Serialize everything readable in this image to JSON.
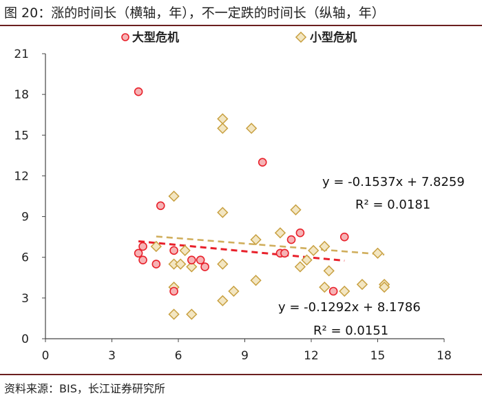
{
  "header": {
    "title": "图 20：涨的时间长（横轴，年），不一定跌的时间长（纵轴，年）"
  },
  "footer": {
    "source": "资料来源：BIS，长江证券研究所"
  },
  "colors": {
    "major": "#e8202a",
    "major_fill": "#f6b3b5",
    "minor": "#c8a040",
    "minor_fill": "#f3e6c2",
    "rule": "#6b1f1f",
    "axis": "#444444"
  },
  "chart_data": {
    "type": "scatter",
    "title": "涨的时间长（横轴，年），不一定跌的时间长（纵轴，年）",
    "xlabel": "",
    "ylabel": "",
    "xlim": [
      0,
      18
    ],
    "ylim": [
      0,
      21
    ],
    "xticks": [
      0,
      3,
      6,
      9,
      12,
      15,
      18
    ],
    "yticks": [
      0,
      3,
      6,
      9,
      12,
      15,
      18,
      21
    ],
    "grid": false,
    "legend_position": "top",
    "series": [
      {
        "name": "大型危机",
        "marker": "circle",
        "points": [
          [
            4.2,
            18.2
          ],
          [
            4.2,
            6.3
          ],
          [
            4.4,
            6.8
          ],
          [
            4.4,
            5.8
          ],
          [
            5.0,
            5.5
          ],
          [
            5.2,
            9.8
          ],
          [
            5.8,
            6.5
          ],
          [
            5.8,
            3.5
          ],
          [
            6.6,
            5.8
          ],
          [
            7.0,
            5.8
          ],
          [
            7.2,
            5.3
          ],
          [
            9.8,
            13.0
          ],
          [
            10.6,
            6.3
          ],
          [
            10.8,
            6.3
          ],
          [
            11.1,
            7.3
          ],
          [
            11.5,
            7.8
          ],
          [
            13.0,
            3.5
          ],
          [
            13.5,
            7.5
          ]
        ],
        "trendline": {
          "slope": -0.1537,
          "intercept": 7.8259,
          "r2": 0.0181,
          "x_range": [
            4.2,
            13.5
          ]
        }
      },
      {
        "name": "小型危机",
        "marker": "diamond",
        "points": [
          [
            5.0,
            6.8
          ],
          [
            5.8,
            10.5
          ],
          [
            5.8,
            5.5
          ],
          [
            5.8,
            3.8
          ],
          [
            5.8,
            1.8
          ],
          [
            6.1,
            5.5
          ],
          [
            6.3,
            6.5
          ],
          [
            6.6,
            5.3
          ],
          [
            6.6,
            1.8
          ],
          [
            8.0,
            16.2
          ],
          [
            8.0,
            15.5
          ],
          [
            8.0,
            9.3
          ],
          [
            8.0,
            5.5
          ],
          [
            8.0,
            2.8
          ],
          [
            8.5,
            3.5
          ],
          [
            9.3,
            15.5
          ],
          [
            9.5,
            7.3
          ],
          [
            9.5,
            4.3
          ],
          [
            10.6,
            7.8
          ],
          [
            11.3,
            9.5
          ],
          [
            11.5,
            5.3
          ],
          [
            11.8,
            5.8
          ],
          [
            12.1,
            6.5
          ],
          [
            12.6,
            3.8
          ],
          [
            12.6,
            6.8
          ],
          [
            12.8,
            5.0
          ],
          [
            13.5,
            3.5
          ],
          [
            14.3,
            4.0
          ],
          [
            15.0,
            6.3
          ],
          [
            15.3,
            4.0
          ],
          [
            15.3,
            3.8
          ]
        ],
        "trendline": {
          "slope": -0.1292,
          "intercept": 8.1786,
          "r2": 0.0151,
          "x_range": [
            5.0,
            15.3
          ]
        }
      }
    ],
    "annotations": [
      "y = -0.1537x + 7.8259",
      "R² = 0.0181",
      "y = -0.1292x + 8.1786",
      "R² = 0.0151"
    ]
  }
}
